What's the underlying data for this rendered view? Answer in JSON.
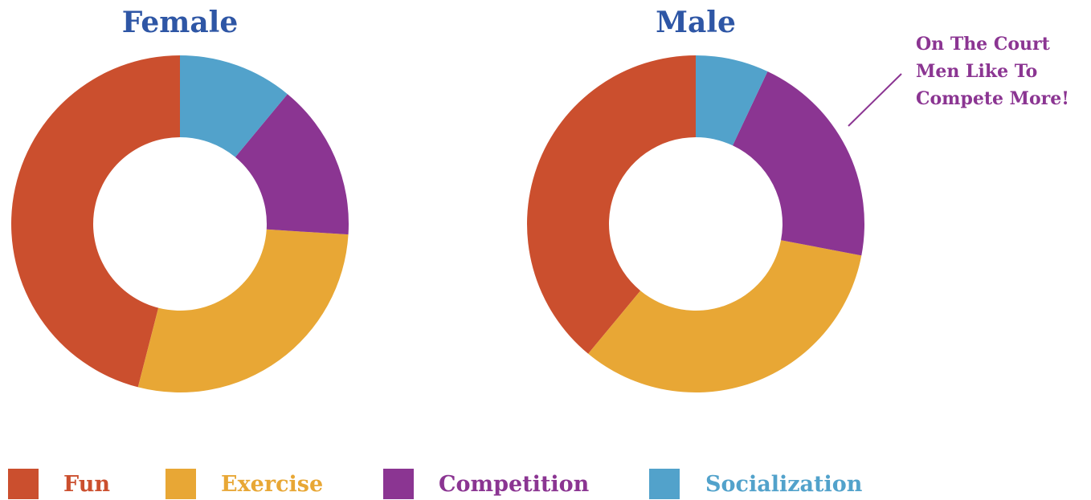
{
  "chart_data": [
    {
      "type": "pie",
      "donut": true,
      "title": "Female",
      "categories": [
        "Fun",
        "Exercise",
        "Competition",
        "Socialization"
      ],
      "values": [
        46,
        28,
        15,
        11
      ],
      "colors": [
        "#cb4f2e",
        "#e8a735",
        "#8b3592",
        "#52a2cb"
      ]
    },
    {
      "type": "pie",
      "donut": true,
      "title": "Male",
      "categories": [
        "Fun",
        "Exercise",
        "Competition",
        "Socialization"
      ],
      "values": [
        39,
        33,
        21,
        7
      ],
      "colors": [
        "#cb4f2e",
        "#e8a735",
        "#8b3592",
        "#52a2cb"
      ],
      "annotation": [
        "On The Court",
        "Men Like To",
        "Compete More!"
      ]
    }
  ]
}
